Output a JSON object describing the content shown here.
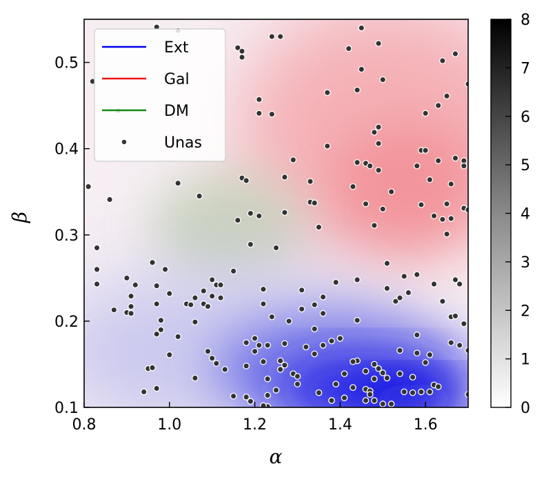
{
  "chart_data": {
    "type": "scatter",
    "title": "",
    "xlabel": "α",
    "ylabel": "β",
    "xlim": [
      0.8,
      1.7
    ],
    "ylim": [
      0.1,
      0.55
    ],
    "xticks": [
      0.8,
      1.0,
      1.2,
      1.4,
      1.6
    ],
    "xtick_labels": [
      "0.8",
      "1.0",
      "1.2",
      "1.4",
      "1.6"
    ],
    "yticks": [
      0.1,
      0.2,
      0.3,
      0.4,
      0.5
    ],
    "ytick_labels": [
      "0.1",
      "0.2",
      "0.3",
      "0.4",
      "0.5"
    ],
    "colorbar": {
      "range": [
        0,
        8
      ],
      "ticks": [
        0,
        1,
        2,
        3,
        4,
        5,
        6,
        7,
        8
      ],
      "tick_labels": [
        "0",
        "1",
        "2",
        "3",
        "4",
        "5",
        "6",
        "7",
        "8"
      ],
      "colormap": "Greys"
    },
    "legend_position": "top-left",
    "series": [
      {
        "name": "Ext",
        "kind": "density",
        "color": "#0000ee"
      },
      {
        "name": "Gal",
        "kind": "density",
        "color": "#ee1111"
      },
      {
        "name": "DM",
        "kind": "density",
        "color": "#118811"
      },
      {
        "name": "Unas",
        "kind": "scatter",
        "color": "#333333",
        "points": [
          [
            0.81,
            0.356
          ],
          [
            0.82,
            0.478
          ],
          [
            0.83,
            0.285
          ],
          [
            0.83,
            0.26
          ],
          [
            0.83,
            0.243
          ],
          [
            0.86,
            0.341
          ],
          [
            0.87,
            0.213
          ],
          [
            0.88,
            0.444
          ],
          [
            0.9,
            0.25
          ],
          [
            0.9,
            0.21
          ],
          [
            0.91,
            0.229
          ],
          [
            0.91,
            0.217
          ],
          [
            0.91,
            0.209
          ],
          [
            0.92,
            0.242
          ],
          [
            0.94,
            0.118
          ],
          [
            0.95,
            0.145
          ],
          [
            0.96,
            0.268
          ],
          [
            0.96,
            0.146
          ],
          [
            0.97,
            0.241
          ],
          [
            0.97,
            0.22
          ],
          [
            0.97,
            0.185
          ],
          [
            0.97,
            0.122
          ],
          [
            0.98,
            0.201
          ],
          [
            0.98,
            0.19
          ],
          [
            0.99,
            0.26
          ],
          [
            1.0,
            0.232
          ],
          [
            1.0,
            0.161
          ],
          [
            1.02,
            0.537
          ],
          [
            1.02,
            0.36
          ],
          [
            1.02,
            0.182
          ],
          [
            1.04,
            0.22
          ],
          [
            1.05,
            0.219
          ],
          [
            1.06,
            0.227
          ],
          [
            1.06,
            0.199
          ],
          [
            1.06,
            0.134
          ],
          [
            1.07,
            0.345
          ],
          [
            1.08,
            0.22
          ],
          [
            1.08,
            0.235
          ],
          [
            1.09,
            0.217
          ],
          [
            1.09,
            0.165
          ],
          [
            1.1,
            0.248
          ],
          [
            1.1,
            0.229
          ],
          [
            1.1,
            0.157
          ],
          [
            1.11,
            0.242
          ],
          [
            1.11,
            0.151
          ],
          [
            1.12,
            0.227
          ],
          [
            1.13,
            0.144
          ],
          [
            1.15,
            0.258
          ],
          [
            1.15,
            0.113
          ],
          [
            1.16,
            0.317
          ],
          [
            1.16,
            0.517
          ],
          [
            1.17,
            0.366
          ],
          [
            1.17,
            0.513
          ],
          [
            1.17,
            0.506
          ],
          [
            1.18,
            0.363
          ],
          [
            1.18,
            0.175
          ],
          [
            1.18,
            0.148
          ],
          [
            1.18,
            0.112
          ],
          [
            1.19,
            0.107
          ],
          [
            1.19,
            0.325
          ],
          [
            1.19,
            0.289
          ],
          [
            1.2,
            0.18
          ],
          [
            1.2,
            0.165
          ],
          [
            1.21,
            0.322
          ],
          [
            1.21,
            0.441
          ],
          [
            1.21,
            0.457
          ],
          [
            1.21,
            0.172
          ],
          [
            1.22,
            0.153
          ],
          [
            1.22,
            0.22
          ],
          [
            1.22,
            0.237
          ],
          [
            1.23,
            0.172
          ],
          [
            1.23,
            0.101
          ],
          [
            1.23,
            0.133
          ],
          [
            1.23,
            0.114
          ],
          [
            1.24,
            0.53
          ],
          [
            1.24,
            0.44
          ],
          [
            1.24,
            0.205
          ],
          [
            1.25,
            0.285
          ],
          [
            1.25,
            0.12
          ],
          [
            1.26,
            0.53
          ],
          [
            1.26,
            0.154
          ],
          [
            1.26,
            0.144
          ],
          [
            1.27,
            0.149
          ],
          [
            1.27,
            0.367
          ],
          [
            1.27,
            0.326
          ],
          [
            1.28,
            0.2
          ],
          [
            1.29,
            0.387
          ],
          [
            1.29,
            0.139
          ],
          [
            1.3,
            0.127
          ],
          [
            1.31,
            0.236
          ],
          [
            1.31,
            0.214
          ],
          [
            1.32,
            0.17
          ],
          [
            1.33,
            0.338
          ],
          [
            1.33,
            0.362
          ],
          [
            1.34,
            0.337
          ],
          [
            1.34,
            0.219
          ],
          [
            1.34,
            0.191
          ],
          [
            1.34,
            0.162
          ],
          [
            1.35,
            0.309
          ],
          [
            1.35,
            0.117
          ],
          [
            1.36,
            0.228
          ],
          [
            1.36,
            0.209
          ],
          [
            1.36,
            0.172
          ],
          [
            1.37,
            0.465
          ],
          [
            1.37,
            0.403
          ],
          [
            1.38,
            0.177
          ],
          [
            1.38,
            0.108
          ],
          [
            1.39,
            0.127
          ],
          [
            1.39,
            0.245
          ],
          [
            1.4,
            0.18
          ],
          [
            1.41,
            0.139
          ],
          [
            1.41,
            0.111
          ],
          [
            1.42,
            0.516
          ],
          [
            1.43,
            0.356
          ],
          [
            1.43,
            0.123
          ],
          [
            1.44,
            0.468
          ],
          [
            1.44,
            0.384
          ],
          [
            1.44,
            0.248
          ],
          [
            1.44,
            0.201
          ],
          [
            1.44,
            0.154
          ],
          [
            1.45,
            0.54
          ],
          [
            1.45,
            0.492
          ],
          [
            1.46,
            0.383
          ],
          [
            1.46,
            0.336
          ],
          [
            1.46,
            0.142
          ],
          [
            1.46,
            0.121
          ],
          [
            1.46,
            0.108
          ],
          [
            1.47,
            0.38
          ],
          [
            1.47,
            0.119
          ],
          [
            1.48,
            0.419
          ],
          [
            1.48,
            0.311
          ],
          [
            1.48,
            0.15
          ],
          [
            1.48,
            0.133
          ],
          [
            1.48,
            0.108
          ],
          [
            1.49,
            0.522
          ],
          [
            1.49,
            0.425
          ],
          [
            1.49,
            0.406
          ],
          [
            1.49,
            0.375
          ],
          [
            1.49,
            0.145
          ],
          [
            1.5,
            0.48
          ],
          [
            1.5,
            0.33
          ],
          [
            1.5,
            0.14
          ],
          [
            1.5,
            0.104
          ],
          [
            1.51,
            0.267
          ],
          [
            1.51,
            0.238
          ],
          [
            1.51,
            0.134
          ],
          [
            1.52,
            0.35
          ],
          [
            1.53,
            0.223
          ],
          [
            1.54,
            0.227
          ],
          [
            1.54,
            0.166
          ],
          [
            1.54,
            0.139
          ],
          [
            1.55,
            0.252
          ],
          [
            1.55,
            0.118
          ],
          [
            1.56,
            0.233
          ],
          [
            1.57,
            0.135
          ],
          [
            1.57,
            0.117
          ],
          [
            1.58,
            0.38
          ],
          [
            1.58,
            0.254
          ],
          [
            1.58,
            0.184
          ],
          [
            1.58,
            0.163
          ],
          [
            1.59,
            0.335
          ],
          [
            1.59,
            0.398
          ],
          [
            1.59,
            0.118
          ],
          [
            1.6,
            0.398
          ],
          [
            1.6,
            0.441
          ],
          [
            1.6,
            0.152
          ],
          [
            1.61,
            0.364
          ],
          [
            1.61,
            0.161
          ],
          [
            1.61,
            0.118
          ],
          [
            1.62,
            0.322
          ],
          [
            1.62,
            0.243
          ],
          [
            1.62,
            0.126
          ],
          [
            1.63,
            0.45
          ],
          [
            1.63,
            0.386
          ],
          [
            1.63,
            0.124
          ],
          [
            1.64,
            0.502
          ],
          [
            1.64,
            0.318
          ],
          [
            1.64,
            0.223
          ],
          [
            1.65,
            0.461
          ],
          [
            1.65,
            0.336
          ],
          [
            1.65,
            0.301
          ],
          [
            1.66,
            0.359
          ],
          [
            1.66,
            0.319
          ],
          [
            1.66,
            0.205
          ],
          [
            1.66,
            0.175
          ],
          [
            1.67,
            0.389
          ],
          [
            1.67,
            0.51
          ],
          [
            1.67,
            0.206
          ],
          [
            1.67,
            0.248
          ],
          [
            1.68,
            0.243
          ],
          [
            1.68,
            0.172
          ],
          [
            1.69,
            0.386
          ],
          [
            1.69,
            0.38
          ],
          [
            1.69,
            0.331
          ],
          [
            1.69,
            0.197
          ],
          [
            1.7,
            0.475
          ],
          [
            1.7,
            0.329
          ],
          [
            1.7,
            0.166
          ],
          [
            1.7,
            0.115
          ],
          [
            0.97,
            0.541
          ],
          [
            1.12,
            0.242
          ],
          [
            1.27,
            0.174
          ],
          [
            1.22,
            0.102
          ],
          [
            1.3,
            0.136
          ],
          [
            1.43,
            0.153
          ],
          [
            1.52,
            0.104
          ],
          [
            1.47,
            0.115
          ]
        ]
      }
    ]
  }
}
